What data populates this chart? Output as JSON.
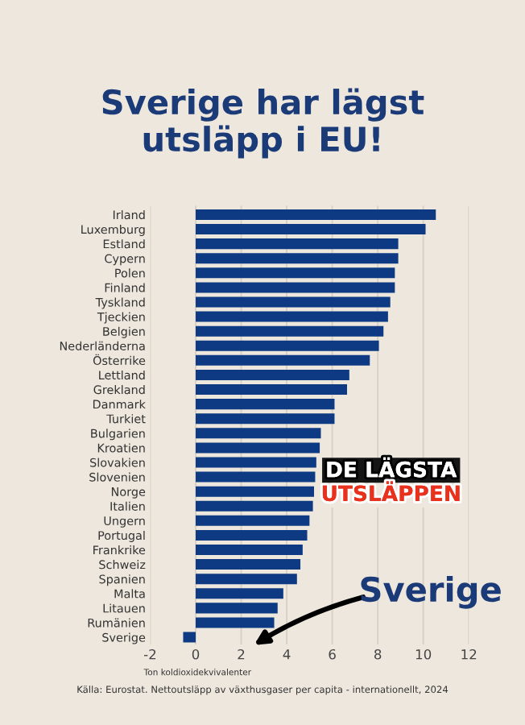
{
  "chart_data": {
    "type": "bar",
    "orientation": "horizontal",
    "title": "Sverige har lägst\nutsläpp i EU!",
    "xlabel": "Ton koldioxidekvivalenter",
    "categories": [
      "Irland",
      "Luxemburg",
      "Estland",
      "Cypern",
      "Polen",
      "Finland",
      "Tyskland",
      "Tjeckien",
      "Belgien",
      "Nederländerna",
      "Österrike",
      "Lettland",
      "Grekland",
      "Danmark",
      "Turkiet",
      "Bulgarien",
      "Kroatien",
      "Slovakien",
      "Slovenien",
      "Norge",
      "Italien",
      "Ungern",
      "Portugal",
      "Frankrike",
      "Schweiz",
      "Spanien",
      "Malta",
      "Litauen",
      "Rumänien",
      "Sverige"
    ],
    "values": [
      10.55,
      10.1,
      8.9,
      8.9,
      8.75,
      8.75,
      8.55,
      8.45,
      8.25,
      8.05,
      7.65,
      6.75,
      6.65,
      6.1,
      6.1,
      5.5,
      5.45,
      5.3,
      5.25,
      5.2,
      5.15,
      5.0,
      4.9,
      4.7,
      4.6,
      4.45,
      3.85,
      3.6,
      3.45,
      -0.55
    ],
    "color": "#0d3a82",
    "xlim": [
      -2,
      12
    ],
    "xticks": [
      -2,
      0,
      2,
      4,
      6,
      8,
      10,
      12
    ],
    "grid": "x",
    "annotations": [
      "DE LÄGSTA",
      "UTSLÄPPEN",
      "Sverige",
      "Källa: Eurostat. Nettoutsläpp av växthusgaser per capita - internationellt, 2024"
    ]
  }
}
